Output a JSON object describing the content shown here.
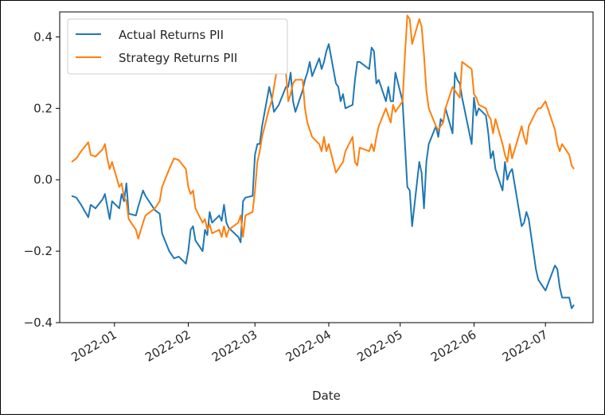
{
  "chart_data": {
    "type": "line",
    "title": "",
    "xlabel": "Date",
    "ylabel": "",
    "x_ticks": [
      "2022-01",
      "2022-02",
      "2022-03",
      "2022-04",
      "2022-05",
      "2022-06",
      "2022-07"
    ],
    "y_ticks": [
      "0.4",
      "0.2",
      "0.0",
      "−0.2",
      "−0.4"
    ],
    "xlim": [
      "2021-12-09",
      "2022-07-21"
    ],
    "ylim": [
      -0.4,
      0.47
    ],
    "grid": false,
    "legend": "upper left",
    "series": [
      {
        "name": "Actual Returns PII",
        "color": "#1f77b4",
        "points": [
          [
            "2021-12-14",
            -0.045
          ],
          [
            "2021-12-16",
            -0.05
          ],
          [
            "2021-12-18",
            -0.07
          ],
          [
            "2021-12-21",
            -0.105
          ],
          [
            "2021-12-22",
            -0.07
          ],
          [
            "2021-12-24",
            -0.08
          ],
          [
            "2021-12-27",
            -0.055
          ],
          [
            "2021-12-28",
            -0.04
          ],
          [
            "2021-12-29",
            -0.075
          ],
          [
            "2021-12-30",
            -0.11
          ],
          [
            "2021-12-31",
            -0.06
          ],
          [
            "2022-01-03",
            -0.08
          ],
          [
            "2022-01-04",
            -0.04
          ],
          [
            "2022-01-05",
            -0.06
          ],
          [
            "2022-01-06",
            -0.01
          ],
          [
            "2022-01-07",
            -0.095
          ],
          [
            "2022-01-10",
            -0.1
          ],
          [
            "2022-01-11",
            -0.075
          ],
          [
            "2022-01-13",
            -0.03
          ],
          [
            "2022-01-14",
            -0.045
          ],
          [
            "2022-01-18",
            -0.085
          ],
          [
            "2022-01-20",
            -0.095
          ],
          [
            "2022-01-21",
            -0.15
          ],
          [
            "2022-01-24",
            -0.2
          ],
          [
            "2022-01-26",
            -0.22
          ],
          [
            "2022-01-28",
            -0.215
          ],
          [
            "2022-01-31",
            -0.235
          ],
          [
            "2022-02-01",
            -0.2
          ],
          [
            "2022-02-02",
            -0.14
          ],
          [
            "2022-02-03",
            -0.13
          ],
          [
            "2022-02-04",
            -0.17
          ],
          [
            "2022-02-07",
            -0.2
          ],
          [
            "2022-02-08",
            -0.14
          ],
          [
            "2022-02-09",
            -0.155
          ],
          [
            "2022-02-10",
            -0.09
          ],
          [
            "2022-02-11",
            -0.12
          ],
          [
            "2022-02-14",
            -0.1
          ],
          [
            "2022-02-15",
            -0.115
          ],
          [
            "2022-02-16",
            -0.07
          ],
          [
            "2022-02-17",
            -0.12
          ],
          [
            "2022-02-18",
            -0.135
          ],
          [
            "2022-02-22",
            -0.16
          ],
          [
            "2022-02-23",
            -0.175
          ],
          [
            "2022-02-24",
            -0.06
          ],
          [
            "2022-02-25",
            -0.05
          ],
          [
            "2022-02-28",
            -0.045
          ],
          [
            "2022-03-01",
            0.07
          ],
          [
            "2022-03-02",
            0.1
          ],
          [
            "2022-03-03",
            0.1
          ],
          [
            "2022-03-04",
            0.15
          ],
          [
            "2022-03-07",
            0.26
          ],
          [
            "2022-03-08",
            0.23
          ],
          [
            "2022-03-09",
            0.19
          ],
          [
            "2022-03-10",
            0.2
          ],
          [
            "2022-03-11",
            0.21
          ],
          [
            "2022-03-14",
            0.26
          ],
          [
            "2022-03-15",
            0.26
          ],
          [
            "2022-03-16",
            0.3
          ],
          [
            "2022-03-17",
            0.22
          ],
          [
            "2022-03-18",
            0.19
          ],
          [
            "2022-03-21",
            0.25
          ],
          [
            "2022-03-22",
            0.28
          ],
          [
            "2022-03-23",
            0.3
          ],
          [
            "2022-03-24",
            0.33
          ],
          [
            "2022-03-25",
            0.29
          ],
          [
            "2022-03-28",
            0.34
          ],
          [
            "2022-03-29",
            0.31
          ],
          [
            "2022-03-30",
            0.33
          ],
          [
            "2022-03-31",
            0.36
          ],
          [
            "2022-04-01",
            0.38
          ],
          [
            "2022-04-04",
            0.27
          ],
          [
            "2022-04-05",
            0.26
          ],
          [
            "2022-04-06",
            0.22
          ],
          [
            "2022-04-07",
            0.24
          ],
          [
            "2022-04-08",
            0.2
          ],
          [
            "2022-04-11",
            0.21
          ],
          [
            "2022-04-12",
            0.28
          ],
          [
            "2022-04-13",
            0.33
          ],
          [
            "2022-04-14",
            0.33
          ],
          [
            "2022-04-18",
            0.31
          ],
          [
            "2022-04-19",
            0.37
          ],
          [
            "2022-04-20",
            0.36
          ],
          [
            "2022-04-21",
            0.27
          ],
          [
            "2022-04-22",
            0.28
          ],
          [
            "2022-04-25",
            0.22
          ],
          [
            "2022-04-26",
            0.26
          ],
          [
            "2022-04-27",
            0.22
          ],
          [
            "2022-04-28",
            0.22
          ],
          [
            "2022-04-29",
            0.3
          ],
          [
            "2022-05-02",
            0.22
          ],
          [
            "2022-05-03",
            0.1
          ],
          [
            "2022-05-04",
            -0.02
          ],
          [
            "2022-05-05",
            -0.03
          ],
          [
            "2022-05-06",
            -0.13
          ],
          [
            "2022-05-09",
            0.05
          ],
          [
            "2022-05-10",
            0.02
          ],
          [
            "2022-05-11",
            -0.08
          ],
          [
            "2022-05-12",
            0.05
          ],
          [
            "2022-05-13",
            0.1
          ],
          [
            "2022-05-16",
            0.15
          ],
          [
            "2022-05-17",
            0.12
          ],
          [
            "2022-05-18",
            0.17
          ],
          [
            "2022-05-19",
            0.16
          ],
          [
            "2022-05-20",
            0.2
          ],
          [
            "2022-05-23",
            0.13
          ],
          [
            "2022-05-24",
            0.3
          ],
          [
            "2022-05-25",
            0.28
          ],
          [
            "2022-05-26",
            0.27
          ],
          [
            "2022-05-27",
            0.23
          ],
          [
            "2022-05-31",
            0.1
          ],
          [
            "2022-06-01",
            0.23
          ],
          [
            "2022-06-02",
            0.18
          ],
          [
            "2022-06-03",
            0.2
          ],
          [
            "2022-06-06",
            0.18
          ],
          [
            "2022-06-07",
            0.13
          ],
          [
            "2022-06-08",
            0.06
          ],
          [
            "2022-06-09",
            0.08
          ],
          [
            "2022-06-10",
            0.03
          ],
          [
            "2022-06-13",
            -0.03
          ],
          [
            "2022-06-14",
            0.05
          ],
          [
            "2022-06-15",
            0.0
          ],
          [
            "2022-06-16",
            0.02
          ],
          [
            "2022-06-17",
            0.03
          ],
          [
            "2022-06-21",
            -0.13
          ],
          [
            "2022-06-22",
            -0.12
          ],
          [
            "2022-06-23",
            -0.09
          ],
          [
            "2022-06-24",
            -0.11
          ],
          [
            "2022-06-27",
            -0.25
          ],
          [
            "2022-06-28",
            -0.28
          ],
          [
            "2022-06-29",
            -0.29
          ],
          [
            "2022-06-30",
            -0.3
          ],
          [
            "2022-07-01",
            -0.31
          ],
          [
            "2022-07-05",
            -0.24
          ],
          [
            "2022-07-06",
            -0.25
          ],
          [
            "2022-07-07",
            -0.3
          ],
          [
            "2022-07-08",
            -0.33
          ],
          [
            "2022-07-11",
            -0.33
          ],
          [
            "2022-07-12",
            -0.36
          ],
          [
            "2022-07-13",
            -0.35
          ]
        ]
      },
      {
        "name": "Strategy Returns PII",
        "color": "#ff7f0e",
        "points": [
          [
            "2021-12-14",
            0.05
          ],
          [
            "2021-12-16",
            0.06
          ],
          [
            "2021-12-18",
            0.08
          ],
          [
            "2021-12-21",
            0.105
          ],
          [
            "2021-12-22",
            0.07
          ],
          [
            "2021-12-24",
            0.065
          ],
          [
            "2021-12-27",
            0.085
          ],
          [
            "2021-12-28",
            0.1
          ],
          [
            "2021-12-29",
            0.06
          ],
          [
            "2021-12-30",
            0.03
          ],
          [
            "2021-12-31",
            0.05
          ],
          [
            "2022-01-03",
            -0.02
          ],
          [
            "2022-01-04",
            -0.01
          ],
          [
            "2022-01-05",
            -0.05
          ],
          [
            "2022-01-06",
            -0.06
          ],
          [
            "2022-01-07",
            -0.11
          ],
          [
            "2022-01-10",
            -0.14
          ],
          [
            "2022-01-11",
            -0.165
          ],
          [
            "2022-01-13",
            -0.12
          ],
          [
            "2022-01-14",
            -0.1
          ],
          [
            "2022-01-18",
            -0.08
          ],
          [
            "2022-01-20",
            -0.06
          ],
          [
            "2022-01-21",
            -0.02
          ],
          [
            "2022-01-24",
            0.03
          ],
          [
            "2022-01-26",
            0.06
          ],
          [
            "2022-01-28",
            0.055
          ],
          [
            "2022-01-31",
            0.03
          ],
          [
            "2022-02-01",
            -0.02
          ],
          [
            "2022-02-02",
            -0.04
          ],
          [
            "2022-02-03",
            -0.03
          ],
          [
            "2022-02-04",
            -0.08
          ],
          [
            "2022-02-07",
            -0.12
          ],
          [
            "2022-02-08",
            -0.11
          ],
          [
            "2022-02-09",
            -0.14
          ],
          [
            "2022-02-10",
            -0.125
          ],
          [
            "2022-02-11",
            -0.15
          ],
          [
            "2022-02-14",
            -0.14
          ],
          [
            "2022-02-15",
            -0.16
          ],
          [
            "2022-02-16",
            -0.13
          ],
          [
            "2022-02-17",
            -0.16
          ],
          [
            "2022-02-18",
            -0.14
          ],
          [
            "2022-02-22",
            -0.12
          ],
          [
            "2022-02-23",
            -0.1
          ],
          [
            "2022-02-24",
            -0.16
          ],
          [
            "2022-02-25",
            -0.1
          ],
          [
            "2022-02-28",
            -0.09
          ],
          [
            "2022-03-01",
            -0.03
          ],
          [
            "2022-03-02",
            0.05
          ],
          [
            "2022-03-03",
            0.08
          ],
          [
            "2022-03-04",
            0.12
          ],
          [
            "2022-03-07",
            0.2
          ],
          [
            "2022-03-08",
            0.22
          ],
          [
            "2022-03-09",
            0.26
          ],
          [
            "2022-03-10",
            0.3
          ],
          [
            "2022-03-11",
            0.32
          ],
          [
            "2022-03-14",
            0.3
          ],
          [
            "2022-03-15",
            0.22
          ],
          [
            "2022-03-16",
            0.24
          ],
          [
            "2022-03-17",
            0.27
          ],
          [
            "2022-03-18",
            0.28
          ],
          [
            "2022-03-21",
            0.28
          ],
          [
            "2022-03-22",
            0.2
          ],
          [
            "2022-03-23",
            0.16
          ],
          [
            "2022-03-24",
            0.14
          ],
          [
            "2022-03-25",
            0.12
          ],
          [
            "2022-03-28",
            0.1
          ],
          [
            "2022-03-29",
            0.08
          ],
          [
            "2022-03-30",
            0.12
          ],
          [
            "2022-03-31",
            0.08
          ],
          [
            "2022-04-01",
            0.1
          ],
          [
            "2022-04-04",
            0.02
          ],
          [
            "2022-04-05",
            0.03
          ],
          [
            "2022-04-06",
            0.04
          ],
          [
            "2022-04-07",
            0.05
          ],
          [
            "2022-04-08",
            0.08
          ],
          [
            "2022-04-11",
            0.12
          ],
          [
            "2022-04-12",
            0.05
          ],
          [
            "2022-04-13",
            0.04
          ],
          [
            "2022-04-14",
            0.09
          ],
          [
            "2022-04-18",
            0.08
          ],
          [
            "2022-04-19",
            0.1
          ],
          [
            "2022-04-20",
            0.08
          ],
          [
            "2022-04-21",
            0.12
          ],
          [
            "2022-04-22",
            0.15
          ],
          [
            "2022-04-25",
            0.2
          ],
          [
            "2022-04-26",
            0.18
          ],
          [
            "2022-04-27",
            0.16
          ],
          [
            "2022-04-28",
            0.21
          ],
          [
            "2022-04-29",
            0.19
          ],
          [
            "2022-05-02",
            0.22
          ],
          [
            "2022-05-03",
            0.35
          ],
          [
            "2022-05-04",
            0.46
          ],
          [
            "2022-05-05",
            0.45
          ],
          [
            "2022-05-06",
            0.38
          ],
          [
            "2022-05-09",
            0.45
          ],
          [
            "2022-05-10",
            0.43
          ],
          [
            "2022-05-11",
            0.35
          ],
          [
            "2022-05-12",
            0.25
          ],
          [
            "2022-05-13",
            0.2
          ],
          [
            "2022-05-16",
            0.15
          ],
          [
            "2022-05-17",
            0.14
          ],
          [
            "2022-05-18",
            0.15
          ],
          [
            "2022-05-19",
            0.16
          ],
          [
            "2022-05-20",
            0.2
          ],
          [
            "2022-05-23",
            0.26
          ],
          [
            "2022-05-24",
            0.25
          ],
          [
            "2022-05-25",
            0.24
          ],
          [
            "2022-05-26",
            0.23
          ],
          [
            "2022-05-27",
            0.33
          ],
          [
            "2022-05-31",
            0.31
          ],
          [
            "2022-06-01",
            0.24
          ],
          [
            "2022-06-02",
            0.23
          ],
          [
            "2022-06-03",
            0.21
          ],
          [
            "2022-06-06",
            0.2
          ],
          [
            "2022-06-07",
            0.18
          ],
          [
            "2022-06-08",
            0.17
          ],
          [
            "2022-06-09",
            0.13
          ],
          [
            "2022-06-10",
            0.17
          ],
          [
            "2022-06-13",
            0.1
          ],
          [
            "2022-06-14",
            0.07
          ],
          [
            "2022-06-15",
            0.05
          ],
          [
            "2022-06-16",
            0.1
          ],
          [
            "2022-06-17",
            0.06
          ],
          [
            "2022-06-21",
            0.15
          ],
          [
            "2022-06-22",
            0.12
          ],
          [
            "2022-06-23",
            0.1
          ],
          [
            "2022-06-24",
            0.15
          ],
          [
            "2022-06-27",
            0.19
          ],
          [
            "2022-06-28",
            0.2
          ],
          [
            "2022-06-29",
            0.2
          ],
          [
            "2022-06-30",
            0.21
          ],
          [
            "2022-07-01",
            0.22
          ],
          [
            "2022-07-05",
            0.14
          ],
          [
            "2022-07-06",
            0.1
          ],
          [
            "2022-07-07",
            0.08
          ],
          [
            "2022-07-08",
            0.1
          ],
          [
            "2022-07-11",
            0.07
          ],
          [
            "2022-07-12",
            0.04
          ],
          [
            "2022-07-13",
            0.03
          ]
        ]
      }
    ]
  }
}
